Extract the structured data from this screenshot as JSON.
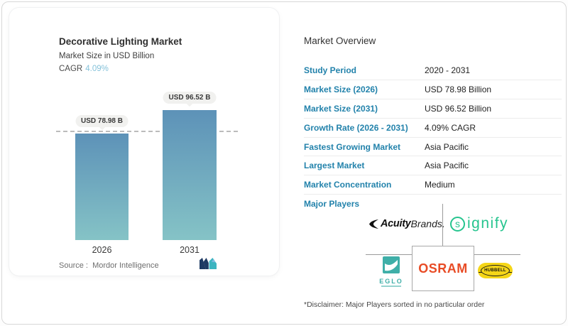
{
  "card": {
    "title": "Decorative Lighting Market",
    "subtitle": "Market Size in USD Billion",
    "cagr_label": "CAGR",
    "cagr_value": "4.09%",
    "source_label": "Source :",
    "source_value": "Mordor Intelligence"
  },
  "chart_data": {
    "type": "bar",
    "title": "Decorative Lighting Market",
    "ylabel": "Market Size in USD Billion",
    "categories": [
      "2026",
      "2031"
    ],
    "values": [
      78.98,
      96.52
    ],
    "value_labels": [
      "USD 78.98 B",
      "USD 96.52 B"
    ],
    "unit": "USD Billion",
    "reference_line": 78.98,
    "ylim": [
      0,
      100
    ],
    "legend": "none",
    "grid": "single horizontal dashed reference line at first bar value",
    "bar_gradient_top": "#5d92b8",
    "bar_gradient_bottom": "#85c3c6"
  },
  "overview": {
    "title": "Market Overview",
    "rows": [
      {
        "label": "Study Period",
        "value": "2020 - 2031"
      },
      {
        "label": "Market Size (2026)",
        "value": "USD 78.98 Billion"
      },
      {
        "label": "Market Size (2031)",
        "value": "USD 96.52 Billion"
      },
      {
        "label": "Growth Rate (2026 - 2031)",
        "value": "4.09% CAGR"
      },
      {
        "label": "Fastest Growing Market",
        "value": "Asia Pacific"
      },
      {
        "label": "Largest Market",
        "value": "Asia Pacific"
      },
      {
        "label": "Market Concentration",
        "value": "Medium"
      }
    ],
    "major_players_label": "Major Players",
    "players": [
      "Acuity Brands",
      "Signify",
      "EGLO",
      "OSRAM",
      "Hubbell"
    ],
    "disclaimer": "*Disclaimer: Major Players sorted in no particular order"
  },
  "players": {
    "acuity_bold": "Acuity",
    "acuity_regular": "Brands.",
    "signify_s": "s",
    "signify_rest": "ignify",
    "eglo": "EGLO",
    "osram": "OSRAM",
    "hubbell": "HUBBELL"
  },
  "colors": {
    "label_blue": "#2282ab",
    "cagr_blue": "#85c2da",
    "signify_green": "#25c48e",
    "osram_orange": "#e84b25",
    "eglo_teal": "#3fafa8",
    "hubbell_yellow": "#f5d617",
    "mordor_navy": "#1e3a63",
    "mordor_teal": "#3cb4c0"
  }
}
